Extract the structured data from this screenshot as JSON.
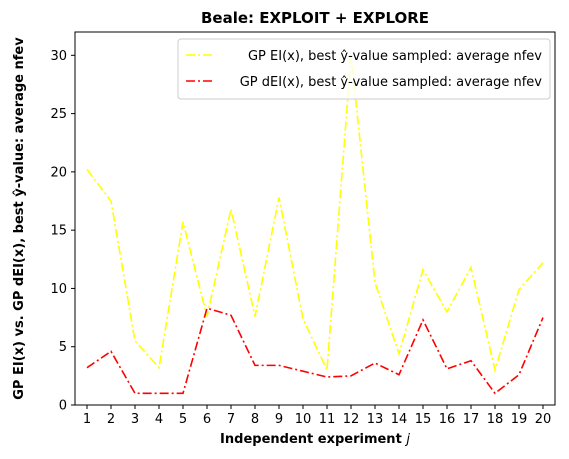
{
  "chart_data": {
    "type": "line",
    "title": "Beale: EXPLOIT + EXPLORE",
    "xlabel": "Independent experiment j",
    "ylabel": "GP EI(x) vs. GP dEI(x), best ŷ-value: average nfev",
    "x": [
      1,
      2,
      3,
      4,
      5,
      6,
      7,
      8,
      9,
      10,
      11,
      12,
      13,
      14,
      15,
      16,
      17,
      18,
      19,
      20
    ],
    "xlim": [
      0.5,
      20.5
    ],
    "ylim": [
      0,
      32
    ],
    "yticks": [
      0,
      5,
      10,
      15,
      20,
      25,
      30
    ],
    "grid": false,
    "legend_position": "top-right",
    "series": [
      {
        "name": "GP EI(x), best ŷ-value sampled: average nfev",
        "color": "#ffff00",
        "linestyle": "dash-dot",
        "values": [
          20.2,
          17.5,
          5.5,
          3.2,
          15.7,
          7.6,
          16.8,
          7.6,
          17.8,
          7.4,
          3.0,
          30.0,
          10.5,
          4.4,
          11.6,
          8.0,
          11.8,
          3.0,
          9.9,
          12.2
        ]
      },
      {
        "name": "GP dEI(x), best ŷ-value sampled: average nfev",
        "color": "#ff0000",
        "linestyle": "dash-dot",
        "values": [
          3.2,
          4.6,
          1.0,
          1.0,
          1.0,
          8.3,
          7.7,
          3.4,
          3.4,
          2.9,
          2.4,
          2.5,
          3.6,
          2.6,
          7.3,
          3.1,
          3.8,
          1.0,
          2.6,
          7.5
        ]
      }
    ]
  }
}
